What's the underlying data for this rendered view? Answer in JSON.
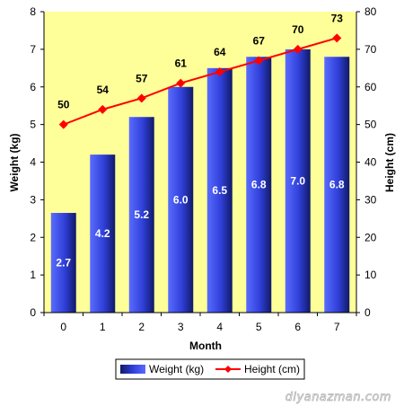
{
  "chart_data": {
    "type": "bar",
    "xlabel": "Month",
    "ylabel_left": "Weight (kg)",
    "ylabel_right": "Height (cm)",
    "categories": [
      "0",
      "1",
      "2",
      "3",
      "4",
      "5",
      "6",
      "7"
    ],
    "ylim_left": [
      0,
      8
    ],
    "ylim_right": [
      0,
      80
    ],
    "yticks_left": [
      "0",
      "1",
      "2",
      "3",
      "4",
      "5",
      "6",
      "7",
      "8"
    ],
    "yticks_right": [
      "0",
      "10",
      "20",
      "30",
      "40",
      "50",
      "60",
      "70",
      "80"
    ],
    "series": [
      {
        "name": "Weight (kg)",
        "type": "bar",
        "axis": "left",
        "values": [
          2.65,
          4.2,
          5.2,
          6.0,
          6.5,
          6.8,
          7.0,
          6.8
        ],
        "labels": [
          "2.7",
          "4.2",
          "5.2",
          "6.0",
          "6.5",
          "6.8",
          "7.0",
          "6.8"
        ],
        "color": "#3a4fe0"
      },
      {
        "name": "Height (cm)",
        "type": "line",
        "axis": "right",
        "values": [
          50,
          54,
          57,
          61,
          64,
          67,
          70,
          73
        ],
        "labels": [
          "50",
          "54",
          "57",
          "61",
          "64",
          "67",
          "70",
          "73"
        ],
        "color": "#ff0000",
        "marker": "diamond"
      }
    ],
    "plot_background": "#ffff99",
    "legend_position": "bottom",
    "grid": false
  },
  "watermark": "diyanazman.com"
}
